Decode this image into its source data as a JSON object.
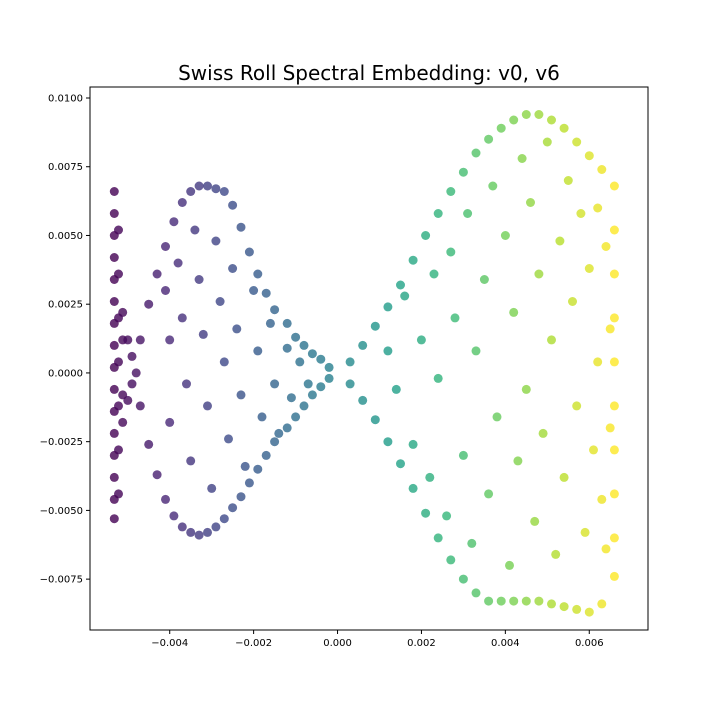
{
  "chart_data": {
    "type": "scatter",
    "title": "Swiss Roll Spectral Embedding: v0, v6",
    "xlabel": "",
    "ylabel": "",
    "xlim": [
      -0.0059,
      0.0074
    ],
    "ylim": [
      -0.00935,
      0.0104
    ],
    "grid": false,
    "colormap": "viridis",
    "colormap_stops": [
      "#440154",
      "#482878",
      "#3e4989",
      "#31688e",
      "#26828e",
      "#1f9e89",
      "#35b779",
      "#6ece58",
      "#b5de2b",
      "#fde725"
    ],
    "point_alpha": 0.8,
    "xticks": [
      {
        "value": -0.004,
        "label": "−0.004"
      },
      {
        "value": -0.002,
        "label": "−0.002"
      },
      {
        "value": 0.0,
        "label": "0.000"
      },
      {
        "value": 0.002,
        "label": "0.002"
      },
      {
        "value": 0.004,
        "label": "0.004"
      },
      {
        "value": 0.006,
        "label": "0.006"
      }
    ],
    "yticks": [
      {
        "value": 0.01,
        "label": "0.0100"
      },
      {
        "value": 0.0075,
        "label": "0.0075"
      },
      {
        "value": 0.005,
        "label": "0.0050"
      },
      {
        "value": 0.0025,
        "label": "0.0025"
      },
      {
        "value": 0.0,
        "label": "0.0000"
      },
      {
        "value": -0.0025,
        "label": "−0.0025"
      },
      {
        "value": -0.005,
        "label": "−0.0050"
      },
      {
        "value": -0.0075,
        "label": "−0.0075"
      }
    ],
    "series": [
      {
        "color_by": "x",
        "points": [
          [
            -0.00532,
            0.0066
          ],
          [
            -0.00532,
            0.0058
          ],
          [
            -0.00532,
            0.005
          ],
          [
            -0.00532,
            0.0042
          ],
          [
            -0.00532,
            0.0034
          ],
          [
            -0.00532,
            0.0026
          ],
          [
            -0.00532,
            0.0018
          ],
          [
            -0.00532,
            0.001
          ],
          [
            -0.00532,
            0.0002
          ],
          [
            -0.00532,
            -0.0006
          ],
          [
            -0.00532,
            -0.0014
          ],
          [
            -0.00532,
            -0.0022
          ],
          [
            -0.00532,
            -0.003
          ],
          [
            -0.00532,
            -0.0038
          ],
          [
            -0.00532,
            -0.0046
          ],
          [
            -0.00532,
            -0.0053
          ],
          [
            -0.00522,
            0.0052
          ],
          [
            -0.00522,
            0.0036
          ],
          [
            -0.00522,
            0.002
          ],
          [
            -0.00522,
            0.0004
          ],
          [
            -0.00522,
            -0.0012
          ],
          [
            -0.00522,
            -0.0028
          ],
          [
            -0.00522,
            -0.0044
          ],
          [
            -0.00512,
            0.0022
          ],
          [
            -0.00512,
            0.0012
          ],
          [
            -0.00512,
            -0.0008
          ],
          [
            -0.00512,
            -0.0018
          ],
          [
            -0.005,
            0.0012
          ],
          [
            -0.005,
            -0.001
          ],
          [
            -0.0049,
            0.0006
          ],
          [
            -0.0049,
            -0.0004
          ],
          [
            -0.0048,
            0.0
          ],
          [
            -0.0047,
            0.0012
          ],
          [
            -0.0045,
            0.0025
          ],
          [
            -0.0043,
            0.0036
          ],
          [
            -0.0041,
            0.0046
          ],
          [
            -0.0039,
            0.0055
          ],
          [
            -0.0037,
            0.0062
          ],
          [
            -0.0035,
            0.0066
          ],
          [
            -0.0033,
            0.0068
          ],
          [
            -0.0031,
            0.0068
          ],
          [
            -0.0029,
            0.0067
          ],
          [
            -0.0027,
            0.0066
          ],
          [
            -0.0025,
            0.0061
          ],
          [
            -0.0023,
            0.0053
          ],
          [
            -0.0021,
            0.0044
          ],
          [
            -0.0019,
            0.0036
          ],
          [
            -0.0017,
            0.0029
          ],
          [
            -0.0015,
            0.0023
          ],
          [
            -0.0012,
            0.0018
          ],
          [
            -0.001,
            0.0013
          ],
          [
            -0.0008,
            0.001
          ],
          [
            -0.0006,
            0.0007
          ],
          [
            -0.0004,
            0.0005
          ],
          [
            -0.0002,
            0.0002
          ],
          [
            -0.0047,
            -0.0012
          ],
          [
            -0.0045,
            -0.0026
          ],
          [
            -0.0043,
            -0.0037
          ],
          [
            -0.0041,
            -0.0046
          ],
          [
            -0.0039,
            -0.0052
          ],
          [
            -0.0037,
            -0.0056
          ],
          [
            -0.0035,
            -0.0058
          ],
          [
            -0.0033,
            -0.0059
          ],
          [
            -0.0031,
            -0.0058
          ],
          [
            -0.0029,
            -0.0056
          ],
          [
            -0.0027,
            -0.0053
          ],
          [
            -0.0025,
            -0.0049
          ],
          [
            -0.0023,
            -0.0045
          ],
          [
            -0.0021,
            -0.004
          ],
          [
            -0.0019,
            -0.0035
          ],
          [
            -0.0017,
            -0.003
          ],
          [
            -0.0015,
            -0.0025
          ],
          [
            -0.0012,
            -0.002
          ],
          [
            -0.001,
            -0.0016
          ],
          [
            -0.0008,
            -0.0012
          ],
          [
            -0.0006,
            -0.0008
          ],
          [
            -0.0004,
            -0.0005
          ],
          [
            -0.0002,
            -0.0002
          ],
          [
            -0.0041,
            0.003
          ],
          [
            -0.004,
            0.0012
          ],
          [
            -0.004,
            -0.0018
          ],
          [
            -0.0038,
            0.004
          ],
          [
            -0.0037,
            0.002
          ],
          [
            -0.0036,
            -0.0004
          ],
          [
            -0.0035,
            -0.0032
          ],
          [
            -0.0034,
            0.0052
          ],
          [
            -0.0033,
            0.0034
          ],
          [
            -0.0032,
            0.0014
          ],
          [
            -0.0031,
            -0.0012
          ],
          [
            -0.003,
            -0.0042
          ],
          [
            -0.0029,
            0.0048
          ],
          [
            -0.0028,
            0.0026
          ],
          [
            -0.0027,
            0.0004
          ],
          [
            -0.0026,
            -0.0024
          ],
          [
            -0.0025,
            0.0038
          ],
          [
            -0.0024,
            0.0016
          ],
          [
            -0.0023,
            -0.0008
          ],
          [
            -0.0022,
            -0.0034
          ],
          [
            -0.002,
            0.003
          ],
          [
            -0.0019,
            0.0008
          ],
          [
            -0.0018,
            -0.0016
          ],
          [
            -0.0016,
            0.0018
          ],
          [
            -0.0015,
            -0.0004
          ],
          [
            -0.0014,
            -0.0022
          ],
          [
            -0.0012,
            0.0009
          ],
          [
            -0.0011,
            -0.0009
          ],
          [
            -0.0009,
            0.0004
          ],
          [
            -0.0007,
            -0.0004
          ],
          [
            0.0003,
            0.0004
          ],
          [
            0.0006,
            0.001
          ],
          [
            0.0009,
            0.0017
          ],
          [
            0.0012,
            0.0024
          ],
          [
            0.0015,
            0.0032
          ],
          [
            0.0018,
            0.0041
          ],
          [
            0.0021,
            0.005
          ],
          [
            0.0024,
            0.0058
          ],
          [
            0.0027,
            0.0066
          ],
          [
            0.003,
            0.0073
          ],
          [
            0.0033,
            0.008
          ],
          [
            0.0036,
            0.0085
          ],
          [
            0.0039,
            0.0089
          ],
          [
            0.0042,
            0.0092
          ],
          [
            0.0045,
            0.0094
          ],
          [
            0.0048,
            0.0094
          ],
          [
            0.0051,
            0.0092
          ],
          [
            0.0054,
            0.0089
          ],
          [
            0.0057,
            0.0084
          ],
          [
            0.006,
            0.0079
          ],
          [
            0.0063,
            0.0074
          ],
          [
            0.0003,
            -0.0004
          ],
          [
            0.0006,
            -0.001
          ],
          [
            0.0009,
            -0.0017
          ],
          [
            0.0012,
            -0.0025
          ],
          [
            0.0015,
            -0.0033
          ],
          [
            0.0018,
            -0.0042
          ],
          [
            0.0021,
            -0.0051
          ],
          [
            0.0024,
            -0.006
          ],
          [
            0.0027,
            -0.0068
          ],
          [
            0.003,
            -0.0075
          ],
          [
            0.0033,
            -0.008
          ],
          [
            0.0036,
            -0.0083
          ],
          [
            0.0039,
            -0.0083
          ],
          [
            0.0042,
            -0.0083
          ],
          [
            0.0045,
            -0.0083
          ],
          [
            0.0048,
            -0.0083
          ],
          [
            0.0051,
            -0.0084
          ],
          [
            0.0054,
            -0.0085
          ],
          [
            0.0057,
            -0.0086
          ],
          [
            0.006,
            -0.0087
          ],
          [
            0.0063,
            -0.0084
          ],
          [
            0.0066,
            0.0068
          ],
          [
            0.0066,
            0.0052
          ],
          [
            0.0066,
            0.0036
          ],
          [
            0.0066,
            0.002
          ],
          [
            0.0066,
            0.0004
          ],
          [
            0.0066,
            -0.0012
          ],
          [
            0.0066,
            -0.0028
          ],
          [
            0.0066,
            -0.0044
          ],
          [
            0.0066,
            -0.006
          ],
          [
            0.0066,
            -0.0074
          ],
          [
            0.0012,
            0.0008
          ],
          [
            0.0014,
            -0.0006
          ],
          [
            0.0016,
            0.0028
          ],
          [
            0.0018,
            -0.0026
          ],
          [
            0.002,
            0.0012
          ],
          [
            0.0022,
            -0.0038
          ],
          [
            0.0023,
            0.0036
          ],
          [
            0.0024,
            -0.0002
          ],
          [
            0.0026,
            -0.0052
          ],
          [
            0.0027,
            0.0044
          ],
          [
            0.0028,
            0.002
          ],
          [
            0.003,
            -0.003
          ],
          [
            0.0031,
            0.0058
          ],
          [
            0.0032,
            -0.0062
          ],
          [
            0.0033,
            0.0008
          ],
          [
            0.0035,
            0.0034
          ],
          [
            0.0036,
            -0.0044
          ],
          [
            0.0037,
            0.0068
          ],
          [
            0.0038,
            -0.0016
          ],
          [
            0.004,
            0.005
          ],
          [
            0.0041,
            -0.007
          ],
          [
            0.0042,
            0.0022
          ],
          [
            0.0043,
            -0.0032
          ],
          [
            0.0044,
            0.0078
          ],
          [
            0.0045,
            -0.0006
          ],
          [
            0.0046,
            0.0062
          ],
          [
            0.0047,
            -0.0054
          ],
          [
            0.0048,
            0.0036
          ],
          [
            0.0049,
            -0.0022
          ],
          [
            0.005,
            0.0084
          ],
          [
            0.0051,
            0.0012
          ],
          [
            0.0052,
            -0.0066
          ],
          [
            0.0053,
            0.0048
          ],
          [
            0.0054,
            -0.0038
          ],
          [
            0.0055,
            0.007
          ],
          [
            0.0056,
            0.0026
          ],
          [
            0.0057,
            -0.0012
          ],
          [
            0.0058,
            0.0058
          ],
          [
            0.0059,
            -0.0058
          ],
          [
            0.006,
            0.0038
          ],
          [
            0.0061,
            -0.0028
          ],
          [
            0.0062,
            0.006
          ],
          [
            0.0062,
            0.0004
          ],
          [
            0.0063,
            -0.0046
          ],
          [
            0.0064,
            0.0046
          ],
          [
            0.0064,
            -0.0064
          ],
          [
            0.0065,
            0.0016
          ],
          [
            0.0065,
            -0.002
          ]
        ]
      }
    ]
  }
}
